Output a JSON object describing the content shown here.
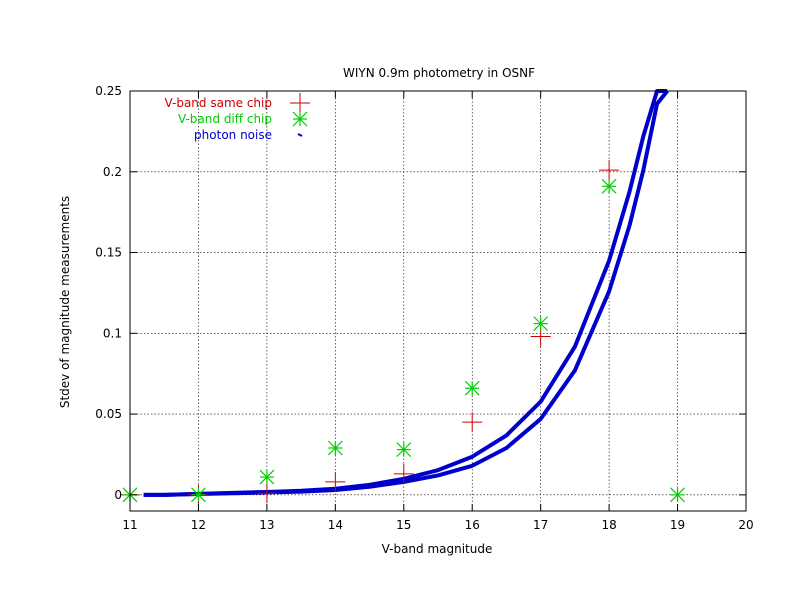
{
  "chart_data": {
    "type": "scatter",
    "title": "WIYN 0.9m photometry in OSNF",
    "xlabel": "V-band magnitude",
    "ylabel": "Stdev of magnitude measurements",
    "xlim": [
      11,
      20
    ],
    "ylim": [
      -0.01,
      0.25
    ],
    "xticks": [
      11,
      12,
      13,
      14,
      15,
      16,
      17,
      18,
      19,
      20
    ],
    "yticks": [
      0,
      0.05,
      0.1,
      0.15,
      0.2,
      0.25
    ],
    "xtick_labels": [
      "11",
      "12",
      "13",
      "14",
      "15",
      "16",
      "17",
      "18",
      "19",
      "20"
    ],
    "ytick_labels": [
      "0",
      "0.05",
      "0.1",
      "0.15",
      "0.2",
      "0.25"
    ],
    "grid": true,
    "legend_position": "top-left",
    "series": [
      {
        "name": "V-band same chip",
        "marker": "plus",
        "color": "#cc0000",
        "x": [
          11,
          12,
          13,
          14,
          15,
          16,
          17,
          18
        ],
        "y": [
          0,
          0,
          0.001,
          0.008,
          0.013,
          0.045,
          0.098,
          0.201
        ]
      },
      {
        "name": "V-band diff chip",
        "marker": "star",
        "color": "#00cc00",
        "x": [
          11,
          12,
          13,
          14,
          15,
          16,
          17,
          18,
          19
        ],
        "y": [
          0,
          0,
          0.011,
          0.029,
          0.028,
          0.066,
          0.106,
          0.191,
          0
        ]
      },
      {
        "name": "photon noise",
        "marker": "dot",
        "color": "#0000cc",
        "curve_x": [
          11.2,
          11.5,
          12.0,
          12.5,
          13.0,
          13.5,
          14.0,
          14.5,
          15.0,
          15.5,
          16.0,
          16.5,
          17.0,
          17.5,
          18.0,
          18.3,
          18.5,
          18.7,
          18.85
        ],
        "lower_y": [
          0.0,
          0.0,
          0.0005,
          0.001,
          0.0015,
          0.002,
          0.003,
          0.005,
          0.008,
          0.012,
          0.018,
          0.029,
          0.047,
          0.077,
          0.126,
          0.167,
          0.201,
          0.242,
          0.25
        ],
        "upper_y": [
          0.0,
          0.0,
          0.0006,
          0.0012,
          0.0018,
          0.0025,
          0.0038,
          0.0062,
          0.0099,
          0.0153,
          0.0236,
          0.0368,
          0.0577,
          0.0917,
          0.145,
          0.188,
          0.222,
          0.25,
          0.25
        ]
      }
    ]
  }
}
